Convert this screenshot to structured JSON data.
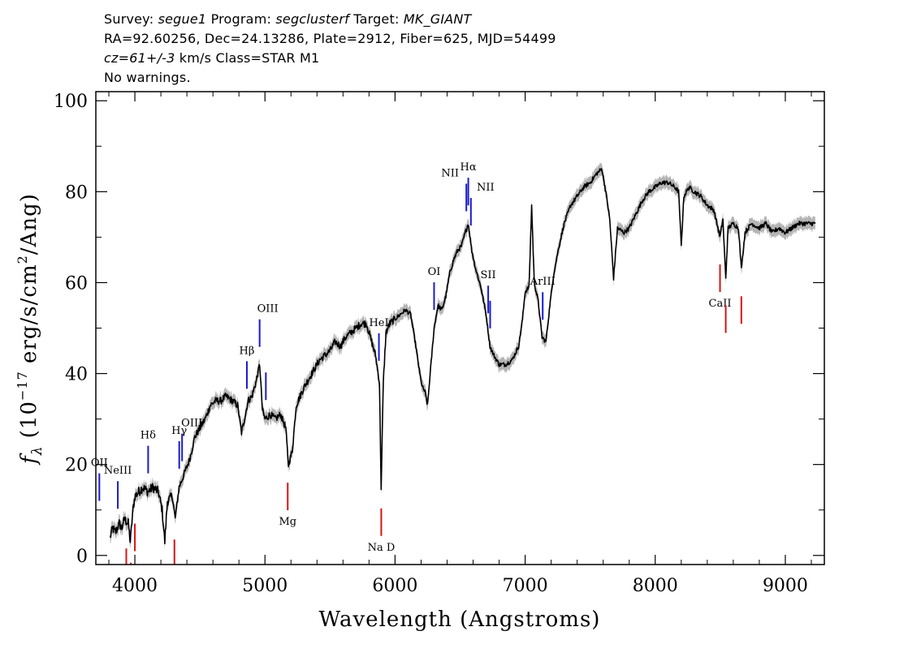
{
  "header": {
    "line1": {
      "survey_label": "Survey: ",
      "survey": "segue1",
      "program_label": " Program: ",
      "program": "segclusterf",
      "target_label": " Target: ",
      "target": "MK_GIANT"
    },
    "line2": "RA=92.60256, Dec=24.13286, Plate=2912, Fiber=625, MJD=54499",
    "line3": {
      "cz": "cz=61+/-3",
      "rest": " km/s Class=STAR M1"
    },
    "line4": "No warnings."
  },
  "chart_data": {
    "type": "line",
    "xlabel": "Wavelength (Angstroms)",
    "ylabel": "f_λ (10^-17 erg/s/cm^2/Ang)",
    "xlim": [
      3700,
      9300
    ],
    "ylim": [
      -2,
      102
    ],
    "x_ticks": [
      4000,
      5000,
      6000,
      7000,
      8000,
      9000
    ],
    "y_ticks": [
      0,
      20,
      40,
      60,
      80,
      100
    ],
    "colors": {
      "spectrum": "#000000",
      "error_band": "#b4b4b4",
      "emission": "#1a1acc",
      "absorption": "#d41515"
    },
    "series": [
      {
        "points": [
          [
            3810,
            4
          ],
          [
            3830,
            6
          ],
          [
            3850,
            5
          ],
          [
            3880,
            7
          ],
          [
            3900,
            6
          ],
          [
            3920,
            8
          ],
          [
            3950,
            7
          ],
          [
            3965,
            3
          ],
          [
            3985,
            10
          ],
          [
            4000,
            13
          ],
          [
            4030,
            14
          ],
          [
            4060,
            15
          ],
          [
            4100,
            14
          ],
          [
            4140,
            15
          ],
          [
            4180,
            14
          ],
          [
            4210,
            10
          ],
          [
            4230,
            3
          ],
          [
            4250,
            12
          ],
          [
            4290,
            13
          ],
          [
            4310,
            8
          ],
          [
            4340,
            15
          ],
          [
            4380,
            18
          ],
          [
            4420,
            21
          ],
          [
            4460,
            26
          ],
          [
            4500,
            28
          ],
          [
            4540,
            30
          ],
          [
            4580,
            33
          ],
          [
            4620,
            34
          ],
          [
            4660,
            34
          ],
          [
            4700,
            35
          ],
          [
            4750,
            34
          ],
          [
            4790,
            33
          ],
          [
            4820,
            27
          ],
          [
            4850,
            31
          ],
          [
            4870,
            34
          ],
          [
            4900,
            35
          ],
          [
            4930,
            38
          ],
          [
            4960,
            42
          ],
          [
            4980,
            32
          ],
          [
            5000,
            30
          ],
          [
            5040,
            31
          ],
          [
            5080,
            30
          ],
          [
            5120,
            31
          ],
          [
            5160,
            28
          ],
          [
            5180,
            20
          ],
          [
            5210,
            23
          ],
          [
            5240,
            33
          ],
          [
            5270,
            35
          ],
          [
            5300,
            37
          ],
          [
            5340,
            39
          ],
          [
            5380,
            41
          ],
          [
            5420,
            43
          ],
          [
            5460,
            44
          ],
          [
            5500,
            45
          ],
          [
            5540,
            47
          ],
          [
            5580,
            46
          ],
          [
            5620,
            48
          ],
          [
            5660,
            49
          ],
          [
            5700,
            50
          ],
          [
            5740,
            51
          ],
          [
            5780,
            51
          ],
          [
            5820,
            47
          ],
          [
            5850,
            44
          ],
          [
            5880,
            38
          ],
          [
            5893,
            15
          ],
          [
            5910,
            38
          ],
          [
            5930,
            49
          ],
          [
            5960,
            51
          ],
          [
            6000,
            52
          ],
          [
            6040,
            53
          ],
          [
            6080,
            54
          ],
          [
            6120,
            53
          ],
          [
            6160,
            46
          ],
          [
            6190,
            40
          ],
          [
            6210,
            37
          ],
          [
            6230,
            36
          ],
          [
            6250,
            33
          ],
          [
            6270,
            40
          ],
          [
            6300,
            50
          ],
          [
            6330,
            55
          ],
          [
            6360,
            54
          ],
          [
            6390,
            57
          ],
          [
            6420,
            62
          ],
          [
            6450,
            65
          ],
          [
            6480,
            67
          ],
          [
            6510,
            68
          ],
          [
            6540,
            71
          ],
          [
            6563,
            73
          ],
          [
            6590,
            67
          ],
          [
            6620,
            63
          ],
          [
            6660,
            59
          ],
          [
            6700,
            53
          ],
          [
            6730,
            46
          ],
          [
            6760,
            44
          ],
          [
            6800,
            42
          ],
          [
            6850,
            42
          ],
          [
            6900,
            43
          ],
          [
            6950,
            46
          ],
          [
            6980,
            52
          ],
          [
            7000,
            58
          ],
          [
            7030,
            59
          ],
          [
            7050,
            77
          ],
          [
            7070,
            60
          ],
          [
            7100,
            56
          ],
          [
            7130,
            48
          ],
          [
            7160,
            47
          ],
          [
            7190,
            55
          ],
          [
            7220,
            62
          ],
          [
            7260,
            68
          ],
          [
            7300,
            73
          ],
          [
            7350,
            77
          ],
          [
            7400,
            79
          ],
          [
            7450,
            81
          ],
          [
            7500,
            82
          ],
          [
            7550,
            84
          ],
          [
            7590,
            85
          ],
          [
            7620,
            80
          ],
          [
            7650,
            74
          ],
          [
            7680,
            61
          ],
          [
            7710,
            72
          ],
          [
            7760,
            71
          ],
          [
            7800,
            72
          ],
          [
            7850,
            75
          ],
          [
            7900,
            78
          ],
          [
            7950,
            80
          ],
          [
            8000,
            81
          ],
          [
            8050,
            82
          ],
          [
            8100,
            82
          ],
          [
            8150,
            81
          ],
          [
            8180,
            80
          ],
          [
            8200,
            68
          ],
          [
            8220,
            79
          ],
          [
            8260,
            81
          ],
          [
            8300,
            80
          ],
          [
            8350,
            79
          ],
          [
            8400,
            77
          ],
          [
            8450,
            76
          ],
          [
            8498,
            70
          ],
          [
            8520,
            74
          ],
          [
            8542,
            61
          ],
          [
            8560,
            72
          ],
          [
            8600,
            73
          ],
          [
            8640,
            72
          ],
          [
            8662,
            63
          ],
          [
            8690,
            71
          ],
          [
            8740,
            73
          ],
          [
            8800,
            72
          ],
          [
            8850,
            73
          ],
          [
            8900,
            71
          ],
          [
            8950,
            72
          ],
          [
            9000,
            71
          ],
          [
            9050,
            72
          ],
          [
            9100,
            73
          ],
          [
            9150,
            73
          ],
          [
            9200,
            73
          ],
          [
            9230,
            73
          ]
        ]
      }
    ],
    "annotations": [
      {
        "label": "OII",
        "x": 3727,
        "type": "emission"
      },
      {
        "label": "NeIII",
        "x": 3869,
        "type": "emission"
      },
      {
        "label": "Hδ",
        "x": 4102,
        "type": "emission"
      },
      {
        "label": "Hγ",
        "x": 4341,
        "type": "emission"
      },
      {
        "label": "OIII",
        "x": 4363,
        "type": "emission"
      },
      {
        "label": "Hβ",
        "x": 4861,
        "type": "emission"
      },
      {
        "label": "OIII",
        "x": 4959,
        "type": "emission"
      },
      {
        "label": "OIII",
        "x": 5007,
        "type": "emission"
      },
      {
        "label": "HeI",
        "x": 5876,
        "type": "emission"
      },
      {
        "label": "OI",
        "x": 6300,
        "type": "emission"
      },
      {
        "label": "NII",
        "x": 6548,
        "type": "emission"
      },
      {
        "label": "Hα",
        "x": 6563,
        "type": "emission"
      },
      {
        "label": "NII",
        "x": 6583,
        "type": "emission"
      },
      {
        "label": "SII",
        "x": 6716,
        "type": "emission"
      },
      {
        "label": "SII",
        "x": 6731,
        "type": "emission"
      },
      {
        "label": "ArIII",
        "x": 7135,
        "type": "emission"
      },
      {
        "label": "Mg",
        "x": 5175,
        "type": "absorption"
      },
      {
        "label": "Na D",
        "x": 5894,
        "type": "absorption"
      },
      {
        "label": "CaII",
        "x": 8498,
        "type": "absorption"
      },
      {
        "label": "CaII",
        "x": 8542,
        "type": "absorption"
      },
      {
        "label": "CaII",
        "x": 8662,
        "type": "absorption"
      },
      {
        "label": "",
        "x": 3934,
        "type": "absorption"
      },
      {
        "label": "",
        "x": 3969,
        "type": "absorption"
      },
      {
        "label": "",
        "x": 4000,
        "type": "absorption"
      },
      {
        "label": "",
        "x": 4304,
        "type": "absorption"
      }
    ]
  }
}
